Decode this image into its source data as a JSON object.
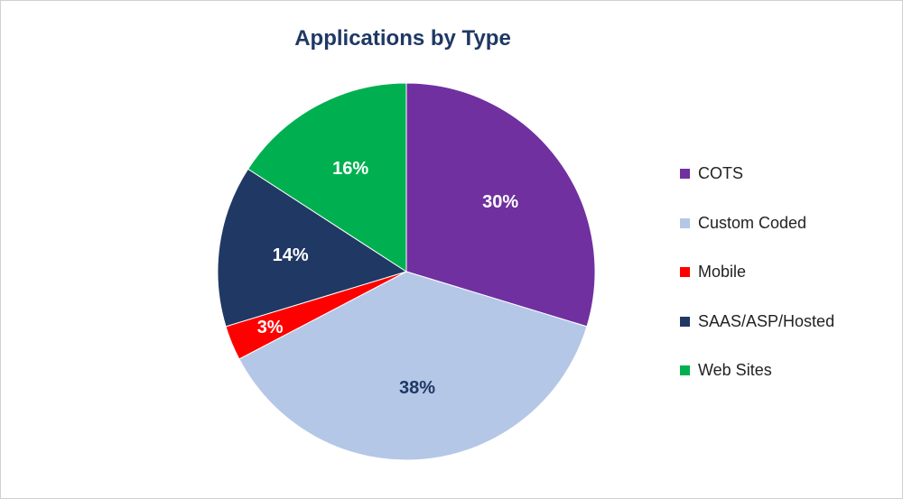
{
  "chart_data": {
    "type": "pie",
    "title": "Applications by Type",
    "categories": [
      "COTS",
      "Custom Coded",
      "Mobile",
      "SAAS/ASP/Hosted",
      "Web Sites"
    ],
    "values": [
      30,
      38,
      3,
      14,
      16
    ],
    "labels": [
      "30%",
      "38%",
      "3%",
      "14%",
      "16%"
    ],
    "colors": [
      "#7030a0",
      "#b4c7e7",
      "#ff0000",
      "#203864",
      "#00b050"
    ],
    "label_colors": [
      "#ffffff",
      "#1f3864",
      "#ffffff",
      "#ffffff",
      "#ffffff"
    ],
    "legend_position": "right"
  }
}
